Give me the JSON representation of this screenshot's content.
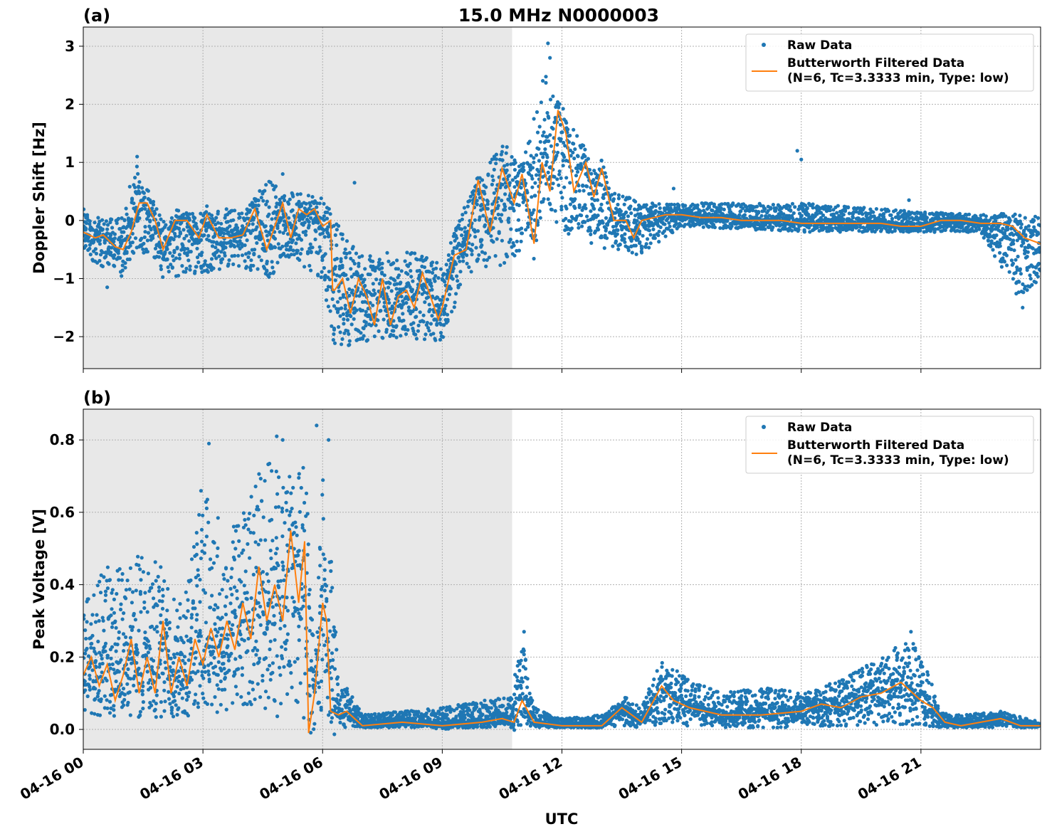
{
  "title": "15.0 MHz N0000003",
  "x_axis": {
    "label": "UTC",
    "tick_labels": [
      "04-16 00",
      "04-16 03",
      "04-16 06",
      "04-16 09",
      "04-16 12",
      "04-16 15",
      "04-16 18",
      "04-16 21"
    ],
    "tick_hours": [
      0,
      3,
      6,
      9,
      12,
      15,
      18,
      21
    ],
    "range_hours": [
      0,
      24
    ]
  },
  "colors": {
    "raw": "#1f77b4",
    "filtered": "#ff7f0e",
    "night_shade": "#e8e8e8",
    "grid": "#b0b0b0"
  },
  "night_shading_hours": [
    0,
    10.75
  ],
  "legend": {
    "raw_label": "Raw Data",
    "filtered_label_line1": "Butterworth Filtered Data",
    "filtered_label_line2": "(N=6, Tc=3.3333 min, Type: low)",
    "placement": "top-right"
  },
  "chart_data": [
    {
      "type": "scatter+line",
      "panel_label": "(a)",
      "ylabel": "Doppler Shift [Hz]",
      "ylim": [
        -2.55,
        3.33
      ],
      "yticks": [
        -2,
        -1,
        0,
        1,
        2,
        3
      ],
      "ytick_labels": [
        "−2",
        "−1",
        "0",
        "1",
        "2",
        "3"
      ],
      "grid": true,
      "filtered_x_hours": [
        0.0,
        0.3,
        0.5,
        0.8,
        1.0,
        1.2,
        1.4,
        1.6,
        1.8,
        2.0,
        2.3,
        2.6,
        2.9,
        3.1,
        3.4,
        3.7,
        4.0,
        4.3,
        4.6,
        4.8,
        5.0,
        5.2,
        5.4,
        5.6,
        5.8,
        6.0,
        6.2,
        6.25,
        6.3,
        6.5,
        6.7,
        6.9,
        7.1,
        7.3,
        7.5,
        7.7,
        7.9,
        8.1,
        8.3,
        8.5,
        8.7,
        8.9,
        9.0,
        9.3,
        9.6,
        9.9,
        10.2,
        10.5,
        10.8,
        11.0,
        11.3,
        11.5,
        11.7,
        11.9,
        12.1,
        12.3,
        12.6,
        12.8,
        13.0,
        13.3,
        13.6,
        13.8,
        14.0,
        14.3,
        14.6,
        15.0,
        15.5,
        16.0,
        16.5,
        17.0,
        17.5,
        18.0,
        18.5,
        19.0,
        19.5,
        20.0,
        20.5,
        21.0,
        21.5,
        22.0,
        22.5,
        23.0,
        23.3,
        23.6,
        24.0
      ],
      "filtered_y": [
        -0.2,
        -0.3,
        -0.25,
        -0.45,
        -0.5,
        -0.2,
        0.3,
        0.3,
        0.0,
        -0.5,
        0.0,
        0.0,
        -0.3,
        0.1,
        -0.3,
        -0.3,
        -0.25,
        0.2,
        -0.5,
        -0.1,
        0.3,
        -0.3,
        0.2,
        0.1,
        0.2,
        -0.1,
        0.0,
        -1.2,
        -1.2,
        -1.0,
        -1.6,
        -1.0,
        -1.3,
        -1.8,
        -1.0,
        -1.8,
        -1.3,
        -1.2,
        -1.5,
        -0.9,
        -1.3,
        -1.7,
        -1.5,
        -0.6,
        -0.5,
        0.7,
        -0.2,
        0.9,
        0.3,
        0.8,
        -0.4,
        1.0,
        0.5,
        1.9,
        1.5,
        0.5,
        1.0,
        0.4,
        0.9,
        0.0,
        0.0,
        -0.3,
        0.0,
        0.05,
        0.1,
        0.1,
        0.05,
        0.05,
        0.0,
        0.0,
        0.0,
        -0.05,
        -0.05,
        -0.05,
        -0.05,
        -0.05,
        -0.1,
        -0.1,
        0.0,
        0.0,
        -0.05,
        -0.05,
        -0.1,
        -0.3,
        -0.4
      ],
      "raw_envelope_hours": [
        0.0,
        0.5,
        1.0,
        1.3,
        1.6,
        2.0,
        3.0,
        4.0,
        4.7,
        5.0,
        6.0,
        6.3,
        7.0,
        8.0,
        9.0,
        9.6,
        10.5,
        11.0,
        11.6,
        12.0,
        12.5,
        13.0,
        14.0,
        15.0,
        18.0,
        21.0,
        22.5,
        23.4,
        24.0
      ],
      "raw_envelope_upper": [
        0.2,
        0.0,
        0.1,
        1.0,
        0.6,
        0.0,
        0.2,
        0.2,
        0.8,
        0.5,
        0.4,
        0.0,
        -0.6,
        -0.5,
        -0.7,
        0.3,
        1.4,
        0.9,
        2.7,
        1.8,
        1.4,
        0.6,
        0.3,
        0.3,
        0.3,
        0.15,
        0.1,
        0.1,
        0.1
      ],
      "raw_envelope_lower": [
        -0.6,
        -0.8,
        -1.0,
        -0.5,
        -0.6,
        -1.0,
        -0.9,
        -0.8,
        -1.0,
        -0.6,
        -1.0,
        -2.2,
        -2.1,
        -2.0,
        -2.1,
        -0.9,
        -0.8,
        -0.5,
        0.2,
        -0.2,
        -0.3,
        -0.5,
        -0.6,
        -0.1,
        -0.2,
        -0.2,
        -0.2,
        -1.4,
        -1.0
      ],
      "raw_outliers": [
        [
          0.6,
          -1.15
        ],
        [
          1.35,
          1.1
        ],
        [
          5.0,
          0.8
        ],
        [
          6.8,
          0.65
        ],
        [
          11.65,
          3.05
        ],
        [
          11.7,
          2.8
        ],
        [
          12.1,
          -0.1
        ],
        [
          12.5,
          -0.1
        ],
        [
          14.8,
          0.55
        ],
        [
          17.9,
          1.2
        ],
        [
          18.0,
          1.05
        ],
        [
          20.7,
          0.35
        ],
        [
          23.55,
          -1.5
        ]
      ]
    },
    {
      "type": "scatter+line",
      "panel_label": "(b)",
      "ylabel": "Peak Voltage [V]",
      "ylim": [
        -0.055,
        0.885
      ],
      "yticks": [
        0.0,
        0.2,
        0.4,
        0.6,
        0.8
      ],
      "ytick_labels": [
        "0.0",
        "0.2",
        "0.4",
        "0.6",
        "0.8"
      ],
      "grid": true,
      "filtered_x_hours": [
        0.0,
        0.2,
        0.4,
        0.6,
        0.8,
        1.0,
        1.2,
        1.4,
        1.6,
        1.8,
        2.0,
        2.2,
        2.4,
        2.6,
        2.8,
        3.0,
        3.2,
        3.4,
        3.6,
        3.8,
        4.0,
        4.2,
        4.4,
        4.6,
        4.8,
        5.0,
        5.2,
        5.4,
        5.55,
        5.65,
        5.8,
        6.0,
        6.1,
        6.2,
        6.4,
        6.6,
        7.0,
        8.0,
        9.0,
        10.0,
        10.5,
        10.8,
        11.0,
        11.3,
        12.0,
        13.0,
        13.5,
        14.0,
        14.5,
        14.8,
        15.2,
        16.0,
        17.0,
        18.0,
        18.5,
        19.0,
        19.5,
        20.0,
        20.5,
        21.0,
        21.3,
        21.6,
        22.0,
        22.5,
        23.0,
        23.5,
        24.0
      ],
      "filtered_y": [
        0.15,
        0.2,
        0.12,
        0.18,
        0.08,
        0.15,
        0.25,
        0.1,
        0.2,
        0.1,
        0.3,
        0.1,
        0.2,
        0.12,
        0.25,
        0.18,
        0.28,
        0.2,
        0.3,
        0.22,
        0.35,
        0.25,
        0.45,
        0.3,
        0.4,
        0.3,
        0.55,
        0.35,
        0.52,
        -0.01,
        0.1,
        0.35,
        0.3,
        0.05,
        0.04,
        0.05,
        0.01,
        0.02,
        0.01,
        0.02,
        0.03,
        0.02,
        0.08,
        0.02,
        0.01,
        0.01,
        0.06,
        0.02,
        0.12,
        0.08,
        0.06,
        0.04,
        0.04,
        0.05,
        0.07,
        0.06,
        0.09,
        0.1,
        0.13,
        0.08,
        0.06,
        0.02,
        0.01,
        0.02,
        0.03,
        0.01,
        0.01
      ],
      "raw_envelope_hours": [
        0.0,
        0.5,
        1.0,
        1.5,
        2.0,
        2.5,
        3.0,
        3.5,
        4.0,
        4.5,
        5.0,
        5.3,
        5.6,
        5.8,
        6.0,
        6.2,
        6.4,
        6.6,
        7.0,
        8.0,
        9.0,
        10.0,
        10.7,
        11.0,
        11.3,
        12.0,
        13.0,
        13.6,
        14.0,
        14.5,
        15.0,
        16.0,
        17.0,
        18.0,
        19.0,
        20.0,
        20.7,
        21.0,
        21.5,
        22.0,
        23.0,
        24.0
      ],
      "raw_envelope_upper": [
        0.35,
        0.45,
        0.45,
        0.5,
        0.45,
        0.35,
        0.7,
        0.55,
        0.6,
        0.75,
        0.75,
        0.7,
        0.8,
        0.15,
        0.7,
        0.6,
        0.1,
        0.12,
        0.04,
        0.05,
        0.06,
        0.08,
        0.09,
        0.25,
        0.06,
        0.03,
        0.04,
        0.09,
        0.06,
        0.2,
        0.15,
        0.1,
        0.12,
        0.1,
        0.14,
        0.2,
        0.26,
        0.22,
        0.05,
        0.04,
        0.05,
        0.02
      ],
      "raw_envelope_lower": [
        0.05,
        0.03,
        0.04,
        0.03,
        0.02,
        0.03,
        0.05,
        0.03,
        0.06,
        0.04,
        0.03,
        0.04,
        0.02,
        -0.02,
        0.05,
        0.02,
        0.01,
        0.005,
        0.005,
        0.005,
        0.005,
        0.005,
        0.005,
        0.01,
        0.005,
        0.005,
        0.005,
        0.01,
        0.005,
        0.01,
        0.01,
        0.005,
        0.005,
        0.005,
        0.01,
        0.01,
        0.01,
        0.01,
        0.005,
        0.005,
        0.005,
        0.005
      ],
      "raw_outliers": [
        [
          3.15,
          0.79
        ],
        [
          4.85,
          0.81
        ],
        [
          5.0,
          0.8
        ],
        [
          5.85,
          0.84
        ],
        [
          6.15,
          0.8
        ],
        [
          11.05,
          0.27
        ],
        [
          20.75,
          0.27
        ]
      ]
    }
  ]
}
